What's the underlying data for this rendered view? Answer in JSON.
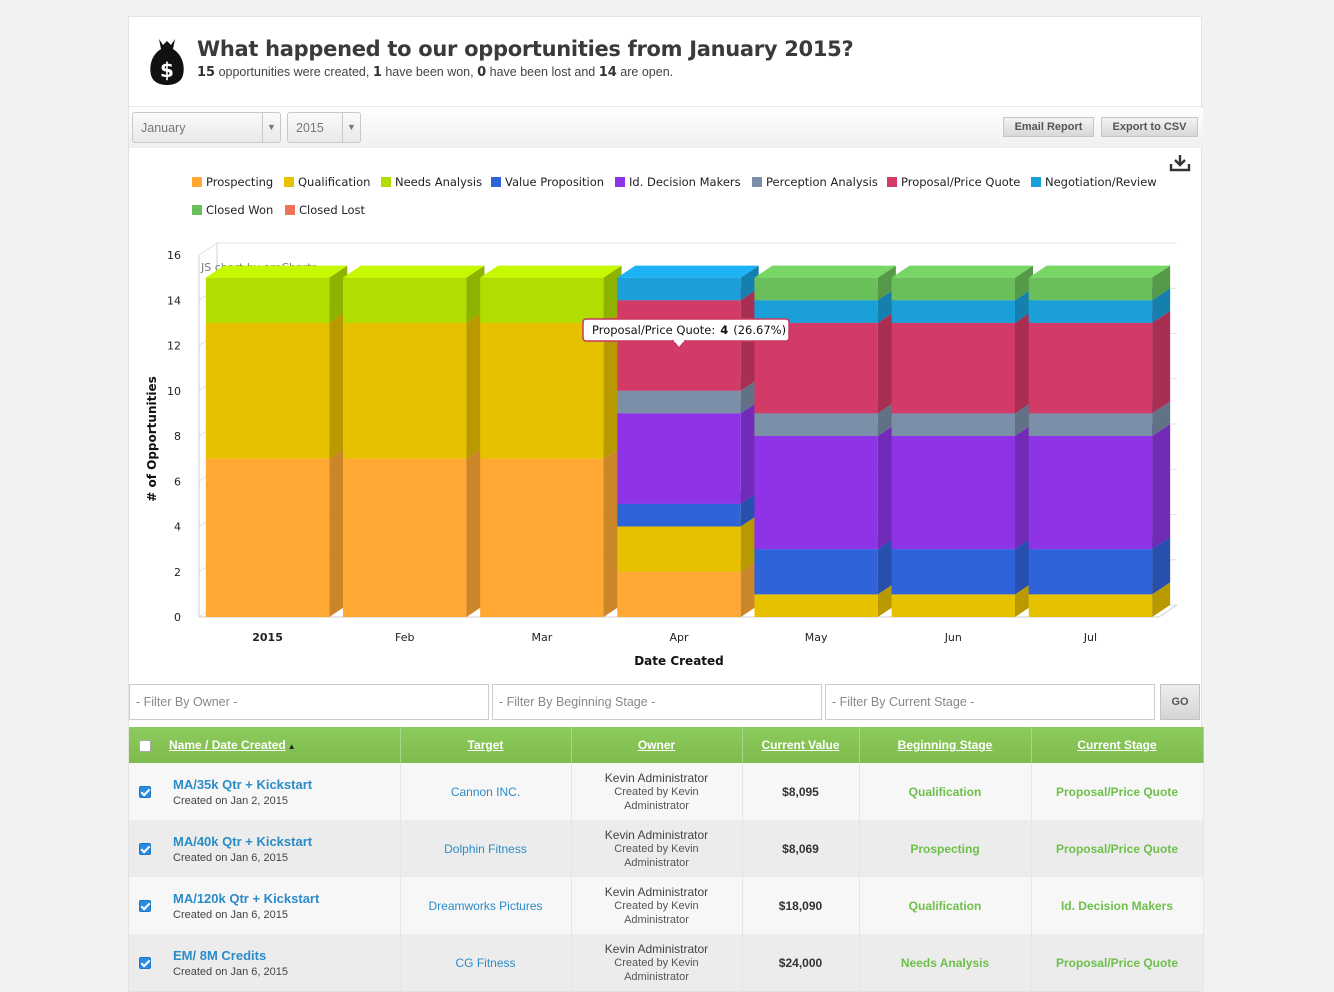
{
  "header": {
    "title": "What happened to our opportunities from January 2015?",
    "summary": {
      "created": "15",
      "created_text": " opportunities were created, ",
      "won": "1",
      "won_text": " have been won, ",
      "lost": "0",
      "lost_text": " have been lost and ",
      "open": "14",
      "open_text": " are open."
    }
  },
  "toolbar": {
    "month": "January",
    "year": "2015",
    "email_label": "Email Report",
    "export_label": "Export to CSV"
  },
  "chart_data": {
    "type": "bar",
    "stacked": true,
    "three_d": true,
    "watermark": "JS chart by amCharts",
    "xlabel": "Date Created",
    "ylabel": "# of Opportunities",
    "ylim": [
      0,
      16
    ],
    "yticks": [
      0,
      2,
      4,
      6,
      8,
      10,
      12,
      14,
      16
    ],
    "categories": [
      "2015",
      "Feb",
      "Mar",
      "Apr",
      "May",
      "Jun",
      "Jul"
    ],
    "series": [
      {
        "name": "Prospecting",
        "color": "#ffa834",
        "values": [
          7,
          7,
          7,
          2,
          0,
          0,
          0
        ]
      },
      {
        "name": "Qualification",
        "color": "#e6c100",
        "values": [
          6,
          6,
          6,
          2,
          1,
          1,
          1
        ]
      },
      {
        "name": "Needs Analysis",
        "color": "#b1de00",
        "values": [
          2,
          2,
          2,
          0,
          0,
          0,
          0
        ]
      },
      {
        "name": "Value Proposition",
        "color": "#2f63d9",
        "values": [
          0,
          0,
          0,
          1,
          2,
          2,
          2
        ]
      },
      {
        "name": "Id. Decision Makers",
        "color": "#8e34e6",
        "values": [
          0,
          0,
          0,
          4,
          5,
          5,
          5
        ]
      },
      {
        "name": "Perception Analysis",
        "color": "#7b8fa8",
        "values": [
          0,
          0,
          0,
          1,
          1,
          1,
          1
        ]
      },
      {
        "name": "Proposal/Price Quote",
        "color": "#d23a67",
        "values": [
          0,
          0,
          0,
          4,
          4,
          4,
          4
        ]
      },
      {
        "name": "Negotiation/Review",
        "color": "#1a9fd9",
        "values": [
          0,
          0,
          0,
          1,
          1,
          1,
          1
        ]
      },
      {
        "name": "Closed Won",
        "color": "#6bbf5a",
        "values": [
          0,
          0,
          0,
          0,
          1,
          1,
          1
        ]
      },
      {
        "name": "Closed Lost",
        "color": "#f07357",
        "values": [
          0,
          0,
          0,
          0,
          0,
          0,
          0
        ]
      }
    ],
    "tooltip": {
      "label": "Proposal/Price Quote:",
      "value": "4",
      "pct": "(26.67%)",
      "category_index": 3
    }
  },
  "filters": {
    "owner_placeholder": "- Filter By Owner -",
    "beginning_placeholder": "- Filter By Beginning Stage -",
    "current_placeholder": "- Filter By Current Stage -",
    "go_label": "GO"
  },
  "table": {
    "headers": {
      "name": "Name",
      "sep": " / ",
      "date": "Date Created",
      "sort_arrow": "▲",
      "target": "Target",
      "owner": "Owner",
      "value": "Current Value",
      "beginning": "Beginning Stage",
      "current": "Current Stage"
    },
    "rows": [
      {
        "name": "MA/35k Qtr + Kickstart",
        "created": "Created on Jan 2, 2015",
        "target": "Cannon INC.",
        "owner": "Kevin Administrator",
        "created_by": "Created by Kevin",
        "created_by2": "Administrator",
        "value": "$8,095",
        "beginning": "Qualification",
        "current": "Proposal/Price Quote"
      },
      {
        "name": "MA/40k Qtr + Kickstart",
        "created": "Created on Jan 6, 2015",
        "target": "Dolphin Fitness",
        "owner": "Kevin Administrator",
        "created_by": "Created by Kevin",
        "created_by2": "Administrator",
        "value": "$8,069",
        "beginning": "Prospecting",
        "current": "Proposal/Price Quote"
      },
      {
        "name": "MA/120k Qtr + Kickstart",
        "created": "Created on Jan 6, 2015",
        "target": "Dreamworks Pictures",
        "owner": "Kevin Administrator",
        "created_by": "Created by Kevin",
        "created_by2": "Administrator",
        "value": "$18,090",
        "beginning": "Qualification",
        "current": "Id. Decision Makers"
      },
      {
        "name": "EM/ 8M Credits",
        "created": "Created on Jan 6, 2015",
        "target": "CG Fitness",
        "owner": "Kevin Administrator",
        "created_by": "Created by Kevin",
        "created_by2": "Administrator",
        "value": "$24,000",
        "beginning": "Needs Analysis",
        "current": "Proposal/Price Quote"
      }
    ]
  }
}
